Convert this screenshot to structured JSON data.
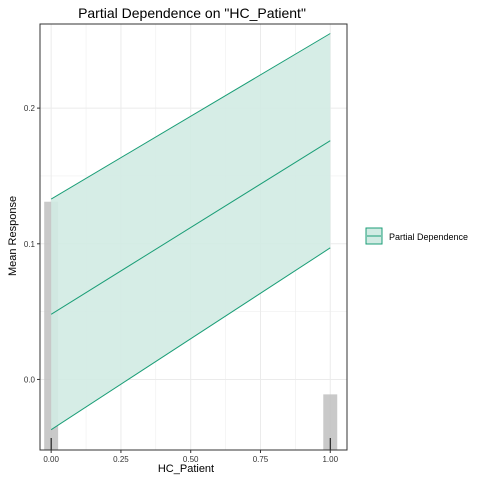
{
  "chart_data": {
    "type": "line",
    "title": "Partial Dependence on \"HC_Patient\"",
    "xlabel": "HC_Patient",
    "ylabel": "Mean Response",
    "xlim": [
      -0.04,
      1.06
    ],
    "ylim": [
      -0.052,
      0.262
    ],
    "x_ticks": [
      "0.00",
      "0.25",
      "0.50",
      "0.75",
      "1.00"
    ],
    "x_tick_values": [
      0.0,
      0.25,
      0.5,
      0.75,
      1.0
    ],
    "y_ticks": [
      "0.0",
      "0.1",
      "0.2"
    ],
    "y_tick_values": [
      0.0,
      0.1,
      0.2
    ],
    "grid": true,
    "legend_position": "right",
    "series": [
      {
        "name": "Partial Dependence",
        "x": [
          0.0,
          1.0
        ],
        "y": [
          0.048,
          0.176
        ],
        "lower": [
          -0.037,
          0.097
        ],
        "upper": [
          0.133,
          0.255
        ]
      }
    ],
    "histogram": {
      "x": [
        0.0,
        1.0
      ],
      "heights": [
        0.131,
        -0.041
      ]
    },
    "colors": {
      "line": "#1b9e77",
      "ribbon_fill": "#d1ebe3",
      "histogram_fill": "#bfbfbf",
      "grid": "#ebebeb",
      "rug": "#000000"
    }
  }
}
